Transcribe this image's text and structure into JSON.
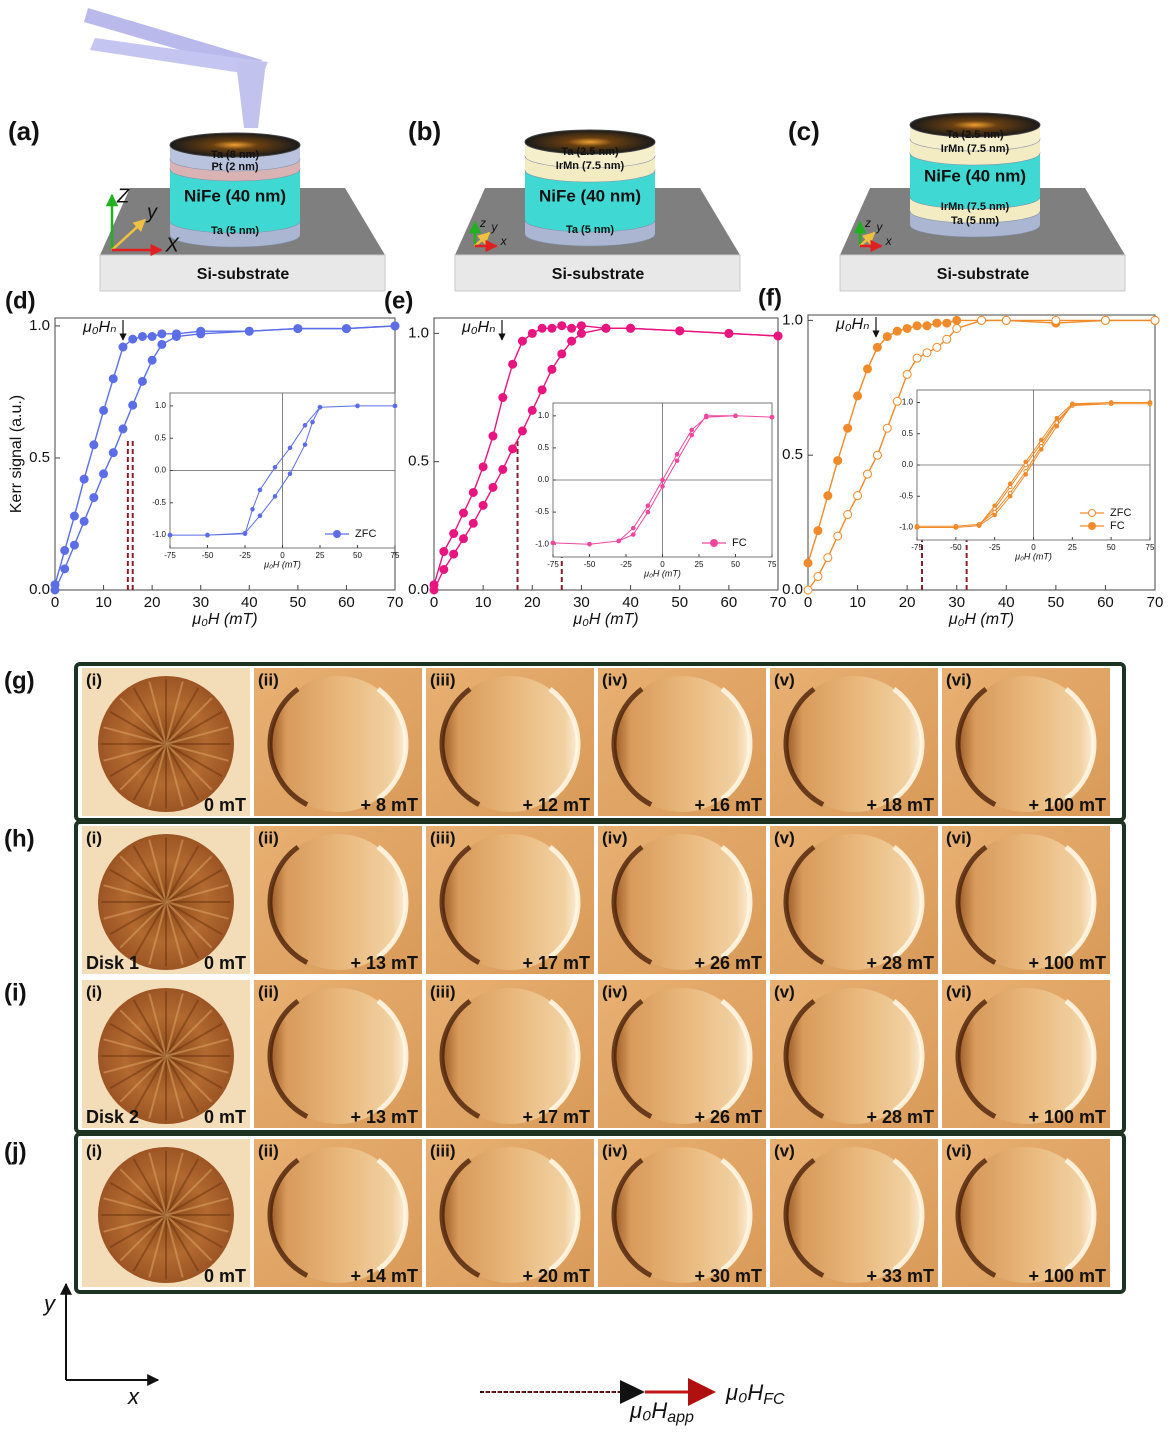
{
  "schematics": [
    {
      "label": "(a)",
      "substrate": "Si-substrate",
      "axes": [
        "Z",
        "y",
        "X"
      ],
      "layers": [
        {
          "name": "Ta (8 nm)",
          "color": "#b9c3dd"
        },
        {
          "name": "Pt (2 nm)",
          "color": "#d9b3b3"
        },
        {
          "name": "NiFe (40 nm)",
          "color": "#40d8d2"
        },
        {
          "name": "Ta (5 nm)",
          "color": "#aab6d2"
        }
      ]
    },
    {
      "label": "(b)",
      "substrate": "Si-substrate",
      "axes": [
        "z",
        "y",
        "x"
      ],
      "layers": [
        {
          "name": "Ta (2.5 nm)",
          "color": "#f6efcc"
        },
        {
          "name": "IrMn (7.5 nm)",
          "color": "#f3ebc2"
        },
        {
          "name": "NiFe (40 nm)",
          "color": "#40d8d2"
        },
        {
          "name": "Ta (5 nm)",
          "color": "#aab6d2"
        }
      ]
    },
    {
      "label": "(c)",
      "substrate": "Si-substrate",
      "axes": [
        "z",
        "y",
        "x"
      ],
      "layers": [
        {
          "name": "Ta (2.5 nm)",
          "color": "#f6efcc"
        },
        {
          "name": "IrMn (7.5 nm)",
          "color": "#f3ebc2"
        },
        {
          "name": "NiFe (40 nm)",
          "color": "#40d8d2"
        },
        {
          "name": "IrMn (7.5 nm)",
          "color": "#f3ebc2"
        },
        {
          "name": "Ta (5 nm)",
          "color": "#aab6d2"
        }
      ]
    }
  ],
  "chart_data": [
    {
      "type": "line",
      "panel_label": "(d)",
      "xlabel": "μ₀H (mT)",
      "ylabel": "Kerr signal (a.u.)",
      "annotation": "μ₀Hₙ",
      "xlim": [
        0,
        70
      ],
      "ylim": [
        0,
        1.03
      ],
      "xticks": [
        0,
        10,
        20,
        30,
        40,
        50,
        60,
        70
      ],
      "yticks": [
        {
          "value": 0,
          "label": "0.0"
        },
        0.5,
        {
          "value": 1,
          "label": "1.0"
        }
      ],
      "dashed_lines": [
        15,
        16
      ],
      "series": [
        {
          "color": "#5b6ee8",
          "marker": "filled",
          "x": [
            0,
            2,
            4,
            6,
            8,
            10,
            12,
            14,
            16,
            18,
            20,
            22,
            25,
            30,
            40,
            50,
            60,
            70
          ],
          "values": [
            0.02,
            0.15,
            0.28,
            0.42,
            0.55,
            0.68,
            0.8,
            0.92,
            0.95,
            0.96,
            0.96,
            0.97,
            0.97,
            0.98,
            0.98,
            0.99,
            0.99,
            1.0
          ]
        },
        {
          "color": "#5b6ee8",
          "marker": "filled",
          "x": [
            0,
            2,
            4,
            6,
            8,
            10,
            12,
            14,
            16,
            18,
            20,
            22,
            25,
            30,
            40,
            50,
            60,
            70
          ],
          "values": [
            0,
            0.08,
            0.17,
            0.26,
            0.35,
            0.44,
            0.52,
            0.61,
            0.7,
            0.79,
            0.87,
            0.93,
            0.96,
            0.97,
            0.98,
            0.99,
            0.99,
            1.0
          ]
        }
      ]
    },
    {
      "type": "line",
      "xlabel": "μ₀H (mT)",
      "legend": "lower right",
      "xlim": [
        -75,
        75
      ],
      "ylim": [
        -1.2,
        1.2
      ],
      "xticks": [
        -75,
        -50,
        -25,
        0,
        25,
        50,
        75
      ],
      "yticks": [
        {
          "value": -1,
          "label": "-1.0"
        },
        -0.5,
        {
          "value": 0,
          "label": "0.0"
        },
        0.5,
        {
          "value": 1,
          "label": "1.0"
        }
      ],
      "series": [
        {
          "name": "ZFC",
          "color": "#5b6ee8",
          "marker": "filled",
          "x": [
            75,
            50,
            25,
            15,
            5,
            -5,
            -15,
            -20,
            -25,
            -50,
            -75,
            -75,
            -50,
            -25,
            -15,
            -5,
            5,
            15,
            20,
            25,
            50,
            75
          ],
          "values": [
            1,
            1,
            0.98,
            0.7,
            0.35,
            0.05,
            -0.3,
            -0.6,
            -0.98,
            -1,
            -1,
            -1,
            -1,
            -0.97,
            -0.7,
            -0.4,
            -0.05,
            0.4,
            0.75,
            0.98,
            1,
            1
          ]
        }
      ]
    },
    {
      "type": "line",
      "panel_label": "(e)",
      "xlabel": "μ₀H (mT)",
      "annotation": "μ₀Hₙ",
      "xlim": [
        0,
        70
      ],
      "ylim": [
        0,
        1.06
      ],
      "xticks": [
        0,
        10,
        20,
        30,
        40,
        50,
        60,
        70
      ],
      "yticks": [
        {
          "value": 0,
          "label": "0.0"
        },
        0.5,
        {
          "value": 1,
          "label": "1.0"
        }
      ],
      "dashed_lines": [
        17,
        26
      ],
      "series": [
        {
          "color": "#e8147f",
          "marker": "filled",
          "x": [
            0,
            2,
            4,
            6,
            8,
            10,
            12,
            14,
            16,
            18,
            20,
            22,
            24,
            26,
            28,
            30,
            35,
            40,
            50,
            60,
            70
          ],
          "values": [
            0.02,
            0.15,
            0.22,
            0.3,
            0.38,
            0.48,
            0.6,
            0.75,
            0.88,
            0.97,
            1.0,
            1.02,
            1.02,
            1.03,
            1.02,
            1.03,
            1.02,
            1.02,
            1.01,
            1.0,
            0.99
          ]
        },
        {
          "color": "#e8147f",
          "marker": "filled",
          "x": [
            0,
            2,
            4,
            6,
            8,
            10,
            12,
            14,
            16,
            18,
            20,
            22,
            24,
            26,
            28,
            30,
            35,
            40,
            50,
            60,
            70
          ],
          "values": [
            0,
            0.08,
            0.14,
            0.2,
            0.26,
            0.33,
            0.4,
            0.47,
            0.55,
            0.62,
            0.7,
            0.78,
            0.86,
            0.92,
            0.97,
            1.0,
            1.02,
            1.02,
            1.01,
            1.0,
            0.99
          ]
        }
      ]
    },
    {
      "type": "line",
      "xlabel": "μ₀H (mT)",
      "legend": "lower right",
      "xlim": [
        -75,
        75
      ],
      "ylim": [
        -1.2,
        1.2
      ],
      "xticks": [
        -75,
        -50,
        -25,
        0,
        25,
        50,
        75
      ],
      "yticks": [
        {
          "value": -1,
          "label": "-1.0"
        },
        -0.5,
        {
          "value": 0,
          "label": "0.0"
        },
        0.5,
        {
          "value": 1,
          "label": "1.0"
        }
      ],
      "series": [
        {
          "name": "FC",
          "color": "#f0479e",
          "marker": "filled",
          "x": [
            75,
            50,
            30,
            20,
            10,
            0,
            -10,
            -20,
            -30,
            -50,
            -75,
            -75,
            -50,
            -30,
            -20,
            -10,
            0,
            10,
            20,
            30,
            50,
            75
          ],
          "values": [
            0.98,
            1,
            1,
            0.7,
            0.3,
            -0.1,
            -0.5,
            -0.85,
            -0.95,
            -1,
            -0.98,
            -0.98,
            -1,
            -0.95,
            -0.75,
            -0.4,
            0,
            0.4,
            0.78,
            0.98,
            1,
            0.98
          ]
        }
      ]
    },
    {
      "type": "line",
      "panel_label": "(f)",
      "xlabel": "μ₀H (mT)",
      "annotation": "μ₀Hₙ",
      "xlim": [
        0,
        70
      ],
      "ylim": [
        0,
        1.02
      ],
      "xticks": [
        0,
        10,
        20,
        30,
        40,
        50,
        60,
        70
      ],
      "yticks": [
        {
          "value": 0,
          "label": "0.0"
        },
        0.5,
        {
          "value": 1,
          "label": "1.0"
        }
      ],
      "dashed_lines": [
        23,
        32
      ],
      "series": [
        {
          "color": "#f08a2a",
          "marker": "filled",
          "x": [
            0,
            2,
            4,
            6,
            8,
            10,
            12,
            14,
            16,
            18,
            20,
            22,
            24,
            26,
            28,
            30,
            35,
            40,
            50,
            60,
            70
          ],
          "values": [
            0.1,
            0.22,
            0.35,
            0.48,
            0.6,
            0.72,
            0.82,
            0.9,
            0.94,
            0.96,
            0.97,
            0.98,
            0.98,
            0.99,
            0.99,
            1.0,
            1.0,
            1.0,
            0.99,
            1.0,
            1.0
          ]
        },
        {
          "color": "#f08a2a",
          "marker": "open",
          "x": [
            0,
            2,
            4,
            6,
            8,
            10,
            12,
            14,
            16,
            18,
            20,
            22,
            24,
            26,
            28,
            30,
            35,
            40,
            50,
            60,
            70
          ],
          "values": [
            0,
            0.05,
            0.12,
            0.2,
            0.28,
            0.35,
            0.43,
            0.5,
            0.6,
            0.7,
            0.8,
            0.86,
            0.88,
            0.9,
            0.93,
            0.97,
            1.0,
            1.0,
            1.0,
            1.0,
            1.0
          ]
        }
      ]
    },
    {
      "type": "line",
      "xlabel": "μ₀H (mT)",
      "legend": "lower right",
      "xlim": [
        -75,
        75
      ],
      "ylim": [
        -1.2,
        1.2
      ],
      "xticks": [
        -75,
        -50,
        -25,
        0,
        25,
        50,
        75
      ],
      "yticks": [
        {
          "value": -1,
          "label": "-1.0"
        },
        -0.5,
        {
          "value": 0,
          "label": "0.0"
        },
        0.5,
        {
          "value": 1,
          "label": "1.0"
        }
      ],
      "series": [
        {
          "name": "ZFC",
          "color": "#f08a2a",
          "marker": "open",
          "x": [
            75,
            50,
            25,
            15,
            5,
            -5,
            -15,
            -25,
            -35,
            -50,
            -75,
            -75,
            -50,
            -35,
            -25,
            -15,
            -5,
            5,
            15,
            25,
            50,
            75
          ],
          "values": [
            0.98,
            0.98,
            0.96,
            0.7,
            0.35,
            0,
            -0.35,
            -0.7,
            -0.95,
            -0.98,
            -0.98,
            -0.98,
            -0.98,
            -0.95,
            -0.75,
            -0.45,
            -0.1,
            0.3,
            0.68,
            0.95,
            0.98,
            0.98
          ]
        },
        {
          "name": "FC",
          "color": "#f08a2a",
          "marker": "filled",
          "x": [
            75,
            50,
            25,
            15,
            5,
            -5,
            -15,
            -25,
            -35,
            -50,
            -75,
            -75,
            -50,
            -35,
            -25,
            -15,
            -5,
            5,
            15,
            25,
            50,
            75
          ],
          "values": [
            1,
            1,
            0.98,
            0.75,
            0.4,
            0.05,
            -0.3,
            -0.65,
            -0.97,
            -1,
            -1,
            -1,
            -1,
            -0.97,
            -0.8,
            -0.5,
            -0.15,
            0.25,
            0.62,
            0.97,
            1,
            1
          ]
        }
      ]
    }
  ],
  "mfm": {
    "rows": [
      {
        "label": "(g)",
        "tiles": [
          {
            "label": "(i)",
            "field": "0 mT"
          },
          {
            "label": "(ii)",
            "field": "+ 8 mT"
          },
          {
            "label": "(iii)",
            "field": "+ 12 mT"
          },
          {
            "label": "(iv)",
            "field": "+ 16 mT"
          },
          {
            "label": "(v)",
            "field": "+ 18 mT"
          },
          {
            "label": "(vi)",
            "field": "+ 100 mT"
          }
        ]
      },
      {
        "label": "(h)",
        "note": "Disk 1",
        "tiles": [
          {
            "label": "(i)",
            "field": "0 mT"
          },
          {
            "label": "(ii)",
            "field": "+ 13 mT"
          },
          {
            "label": "(iii)",
            "field": "+ 17 mT"
          },
          {
            "label": "(iv)",
            "field": "+ 26 mT"
          },
          {
            "label": "(v)",
            "field": "+ 28 mT"
          },
          {
            "label": "(vi)",
            "field": "+ 100 mT"
          }
        ]
      },
      {
        "label": "(i)",
        "note": "Disk 2",
        "tiles": [
          {
            "label": "(i)",
            "field": "0 mT"
          },
          {
            "label": "(ii)",
            "field": "+ 13 mT"
          },
          {
            "label": "(iii)",
            "field": "+ 17 mT"
          },
          {
            "label": "(iv)",
            "field": "+ 26 mT"
          },
          {
            "label": "(v)",
            "field": "+ 28 mT"
          },
          {
            "label": "(vi)",
            "field": "+ 100 mT"
          }
        ]
      },
      {
        "label": "(j)",
        "tiles": [
          {
            "label": "(i)",
            "field": "0 mT"
          },
          {
            "label": "(ii)",
            "field": "+ 14 mT"
          },
          {
            "label": "(iii)",
            "field": "+ 20 mT"
          },
          {
            "label": "(iv)",
            "field": "+ 30 mT"
          },
          {
            "label": "(v)",
            "field": "+ 33 mT"
          },
          {
            "label": "(vi)",
            "field": "+ 100 mT"
          }
        ]
      }
    ],
    "axes": [
      "y",
      "x"
    ],
    "arrow_labels": [
      {
        "base": "μ₀H",
        "sub": "app"
      },
      {
        "base": "μ₀H",
        "sub": "FC"
      }
    ]
  }
}
